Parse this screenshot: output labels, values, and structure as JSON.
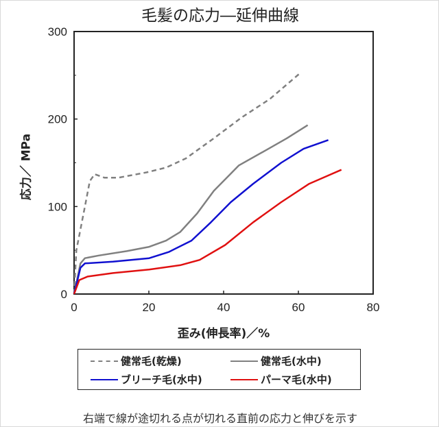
{
  "title": "毛髪の応力―延伸曲線",
  "footer": "右端で線が途切れる点が切れる直前の応力と伸びを示す",
  "chart_data": {
    "type": "line",
    "title": "毛髪の応力―延伸曲線",
    "xlabel": "歪み(伸長率)／%",
    "ylabel": "応力／ MPa",
    "xlim": [
      0,
      80
    ],
    "ylim": [
      0,
      300
    ],
    "xticks": [
      "0",
      "20",
      "40",
      "60",
      "80"
    ],
    "yticks": [
      "0",
      "100",
      "200",
      "300"
    ],
    "grid": false,
    "legend_position": "bottom",
    "series": [
      {
        "name": "健常毛(乾燥)",
        "color": "#808080",
        "dash": true,
        "x": [
          0,
          0.6,
          2.9,
          4.2,
          5.5,
          8.1,
          11.9,
          19.4,
          24.6,
          29.9,
          37.4,
          44.9,
          52.4,
          60.6
        ],
        "y": [
          0,
          50,
          100,
          129,
          137,
          133,
          133,
          139,
          144.5,
          155,
          178,
          202,
          223,
          253
        ]
      },
      {
        "name": "健常毛(水中)",
        "color": "#808080",
        "dash": false,
        "x": [
          0,
          1.7,
          2.9,
          6.6,
          14.1,
          20.1,
          24.6,
          28.4,
          32.9,
          37.4,
          44.1,
          51.6,
          56.9,
          62.5
        ],
        "y": [
          0,
          35,
          41,
          44,
          49,
          54,
          61,
          71,
          92,
          118,
          147,
          165,
          178,
          193
        ]
      },
      {
        "name": "ブリーチ毛(水中)",
        "color": "#1010d0",
        "dash": false,
        "x": [
          0,
          1.7,
          2.9,
          10.4,
          20.1,
          25.3,
          31.4,
          36.6,
          41.9,
          47.9,
          55.4,
          61.4,
          68
        ],
        "y": [
          0,
          30,
          35,
          37,
          41,
          48,
          61,
          82,
          105,
          126,
          150,
          166,
          176
        ]
      },
      {
        "name": "パーマ毛(水中)",
        "color": "#e01010",
        "dash": false,
        "x": [
          0,
          1.4,
          3.6,
          10.4,
          20.1,
          28.4,
          33.6,
          40.4,
          47.9,
          55.4,
          62.9,
          71.5
        ],
        "y": [
          0,
          16,
          20,
          24,
          28,
          33,
          39,
          56,
          82,
          105,
          126,
          142
        ]
      }
    ]
  }
}
